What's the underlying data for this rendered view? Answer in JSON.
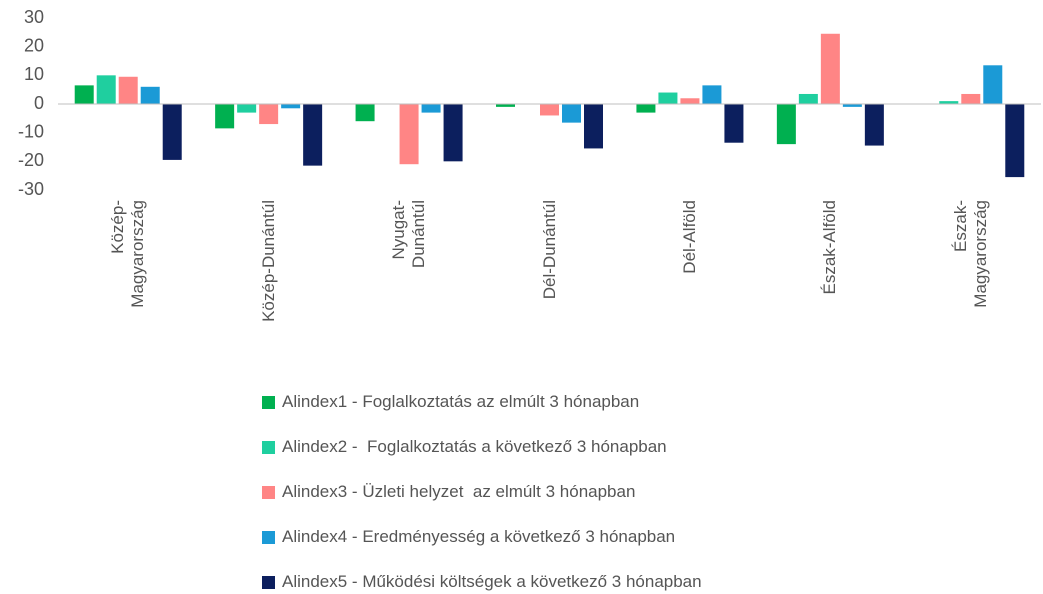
{
  "chart_data": {
    "type": "bar",
    "categories": [
      "Közép-\nMagyarország",
      "Közép-Dunántúl",
      "Nyugat-\nDunántúl",
      "Dél-Dunántúl",
      "Dél-Alföld",
      "Észak-Alföld",
      "Észak-\nMagyarország"
    ],
    "series": [
      {
        "name": "Alindex1 - Foglalkoztatás az elmúlt 3 hónapban",
        "color": "#00b050",
        "values": [
          6.5,
          -8.5,
          -6,
          -1,
          -3,
          -14,
          0
        ]
      },
      {
        "name": "Alindex2 -  Foglalkoztatás a következő 3 hónapban",
        "color": "#1fcf9f",
        "values": [
          10,
          -3,
          0,
          0,
          4,
          3.5,
          1
        ]
      },
      {
        "name": "Alindex3 - Üzleti helyzet  az elmúlt 3 hónapban",
        "color": "#ff8585",
        "values": [
          9.5,
          -7,
          -21,
          -4,
          2,
          24.5,
          3.5
        ]
      },
      {
        "name": "Alindex4 - Eredményesség a következő 3 hónapban",
        "color": "#1b9ad6",
        "values": [
          6,
          -1.5,
          -3,
          -6.5,
          6.5,
          -1,
          13.5
        ]
      },
      {
        "name": "Alindex5 - Működési költségek a következő 3 hónapban",
        "color": "#0c1f5e",
        "values": [
          -19.5,
          -21.5,
          -20,
          -15.5,
          -13.5,
          -14.5,
          -25.5
        ]
      }
    ],
    "ylim": [
      -30,
      30
    ],
    "yticks": [
      -30,
      -20,
      -10,
      0,
      10,
      20,
      30
    ]
  }
}
